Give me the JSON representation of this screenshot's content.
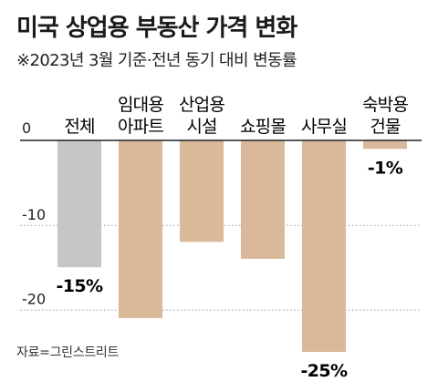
{
  "header": {
    "title": "미국 상업용 부동산 가격 변화",
    "subtitle": "※2023년 3월 기준·전년 동기 대비 변동률"
  },
  "source": "자료=그린스트리트",
  "colors": {
    "highlight_bar": "#c6c6c9",
    "bar": "#d9b99a",
    "baseline": "#222222",
    "gridline": "#9a9a9a"
  },
  "chart_data": {
    "type": "bar",
    "title": "미국 상업용 부동산 가격 변화",
    "subtitle": "※2023년 3월 기준·전년 동기 대비 변동률",
    "categories": [
      [
        "전체"
      ],
      [
        "임대용",
        "아파트"
      ],
      [
        "산업용",
        "시설"
      ],
      [
        "쇼핑몰"
      ],
      [
        "사무실"
      ],
      [
        "숙박용",
        "건물"
      ]
    ],
    "values": [
      -15,
      -21,
      -12,
      -14,
      -25,
      -1
    ],
    "value_labels": [
      "-15%",
      "",
      "",
      "",
      "-25%",
      "-1%"
    ],
    "highlight_index": 0,
    "yticks": [
      0,
      -10,
      -20
    ],
    "ytick_labels": [
      "0",
      "-10",
      "-20"
    ],
    "ylim": [
      -25,
      0
    ],
    "grid": "dotted horizontal at ticks",
    "legend": "none"
  }
}
